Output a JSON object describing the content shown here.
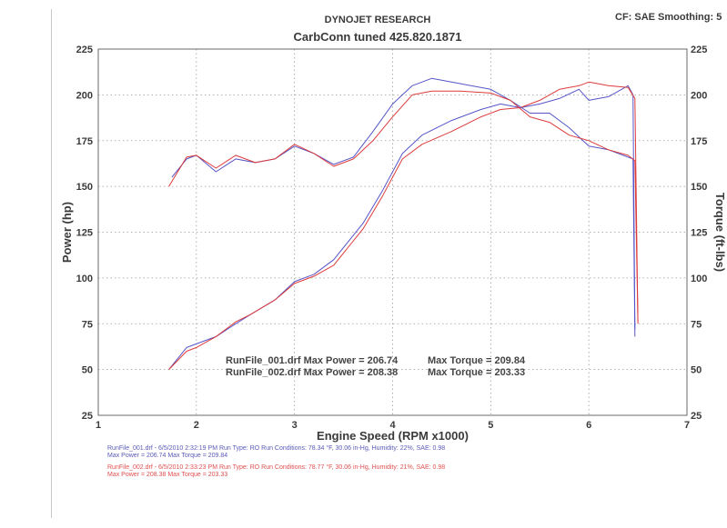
{
  "header": {
    "company": "DYNOJET RESEARCH",
    "title": "CarbConn tuned  425.820.1871",
    "correction": "CF: SAE  Smoothing: 5"
  },
  "footer": {
    "run1_line1": "RunFile_001.drf - 6/5/2010 2:32:19 PM  Run Type: RO  Run Conditions: 78.34 °F, 30.06 in-Hg,  Humidity:  22%, SAE: 0.98",
    "run1_line2": "Max Power = 206.74  Max Torque = 209.84",
    "run2_line1": "RunFile_002.drf - 6/5/2010 2:33:23 PM  Run Type: RO  Run Conditions: 78.77 °F, 30.06 in-Hg,  Humidity:  21%, SAE: 0.98",
    "run2_line2": "Max Power = 208.38  Max Torque = 203.33"
  },
  "chart_data": {
    "type": "line",
    "xlabel": "Engine Speed (RPM x1000)",
    "ylabel_left": "Power (hp)",
    "ylabel_right": "Torque (ft-lbs)",
    "xlim": [
      1,
      7
    ],
    "ylim": [
      25,
      225
    ],
    "xticks": [
      1,
      2,
      3,
      4,
      5,
      6,
      7
    ],
    "yticks": [
      25,
      50,
      75,
      100,
      125,
      150,
      175,
      200,
      225
    ],
    "grid": true,
    "colors": {
      "run1": "#5555c8",
      "run2": "#dd3b3b",
      "text": "#3a3a3a",
      "grid": "#9a9a9a"
    },
    "annotations": [
      {
        "label": "RunFile_001.drf Max Power = 206.74",
        "torque": "Max Torque = 209.84"
      },
      {
        "label": "RunFile_002.drf Max Power = 208.38",
        "torque": "Max Torque = 203.33"
      }
    ],
    "series": [
      {
        "run": "run1",
        "measure": "power",
        "x": [
          1.72,
          1.9,
          2.0,
          2.2,
          2.4,
          2.55,
          2.8,
          3.0,
          3.2,
          3.4,
          3.7,
          3.9,
          4.1,
          4.3,
          4.6,
          4.9,
          5.1,
          5.3,
          5.5,
          5.7,
          5.9,
          6.0,
          6.2,
          6.4,
          6.45,
          6.47
        ],
        "y": [
          50,
          62,
          64,
          68,
          75,
          80,
          88,
          98,
          102,
          110,
          130,
          148,
          168,
          178,
          186,
          192,
          195,
          193,
          195,
          198,
          203,
          197,
          199,
          205,
          200,
          72
        ]
      },
      {
        "run": "run2",
        "measure": "power",
        "x": [
          1.72,
          1.9,
          2.0,
          2.2,
          2.4,
          2.55,
          2.8,
          3.0,
          3.2,
          3.4,
          3.7,
          3.9,
          4.1,
          4.3,
          4.6,
          4.9,
          5.1,
          5.3,
          5.5,
          5.7,
          5.9,
          6.0,
          6.2,
          6.4,
          6.47,
          6.5
        ],
        "y": [
          50,
          60,
          62,
          68,
          76,
          80,
          88,
          97,
          101,
          107,
          127,
          145,
          165,
          173,
          180,
          188,
          192,
          193,
          197,
          203,
          205,
          207,
          205,
          204,
          198,
          75
        ]
      },
      {
        "run": "run1",
        "measure": "torque",
        "x": [
          1.75,
          1.9,
          2.0,
          2.2,
          2.4,
          2.6,
          2.8,
          3.0,
          3.2,
          3.4,
          3.6,
          3.8,
          4.0,
          4.2,
          4.4,
          4.7,
          5.0,
          5.2,
          5.4,
          5.6,
          5.8,
          6.0,
          6.2,
          6.4,
          6.45,
          6.47
        ],
        "y": [
          155,
          165,
          167,
          158,
          165,
          163,
          165,
          172,
          168,
          162,
          166,
          180,
          195,
          205,
          209,
          206,
          203,
          197,
          190,
          190,
          182,
          172,
          170,
          166,
          165,
          68
        ]
      },
      {
        "run": "run2",
        "measure": "torque",
        "x": [
          1.72,
          1.9,
          2.0,
          2.2,
          2.4,
          2.6,
          2.8,
          3.0,
          3.2,
          3.4,
          3.6,
          3.8,
          4.0,
          4.2,
          4.4,
          4.7,
          5.0,
          5.2,
          5.4,
          5.6,
          5.8,
          6.0,
          6.2,
          6.4,
          6.47,
          6.5
        ],
        "y": [
          150,
          166,
          167,
          160,
          167,
          163,
          165,
          173,
          168,
          161,
          165,
          175,
          188,
          200,
          202,
          202,
          201,
          197,
          188,
          185,
          178,
          175,
          170,
          167,
          164,
          76
        ]
      }
    ]
  }
}
